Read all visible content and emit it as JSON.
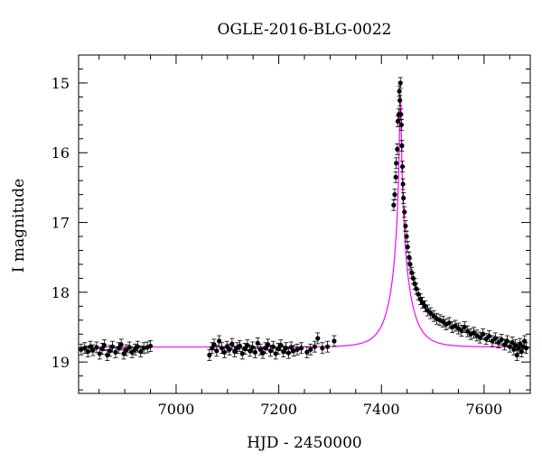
{
  "chart_data": {
    "type": "scatter",
    "title": "OGLE-2016-BLG-0022",
    "xlabel": "HJD - 2450000",
    "ylabel": "I magnitude",
    "xlim": [
      6810,
      7690
    ],
    "ylim": [
      19.45,
      14.6
    ],
    "y_inverted": true,
    "xticks": [
      7000,
      7200,
      7400,
      7600
    ],
    "yticks": [
      15,
      16,
      17,
      18,
      19
    ],
    "colors": {
      "data": "#000000",
      "model": "#ff00ff",
      "frame": "#000000"
    },
    "series": [
      {
        "type": "points_with_errorbars",
        "points": [
          [
            6815,
            18.82
          ],
          [
            6822,
            18.8
          ],
          [
            6828,
            18.85
          ],
          [
            6833,
            18.78
          ],
          [
            6838,
            18.83
          ],
          [
            6845,
            18.79
          ],
          [
            6851,
            18.88
          ],
          [
            6856,
            18.81
          ],
          [
            6860,
            18.76
          ],
          [
            6866,
            18.9
          ],
          [
            6871,
            18.84
          ],
          [
            6876,
            18.78
          ],
          [
            6882,
            18.86
          ],
          [
            6888,
            18.8
          ],
          [
            6893,
            18.75
          ],
          [
            6898,
            18.88
          ],
          [
            6903,
            18.83
          ],
          [
            6909,
            18.79
          ],
          [
            6914,
            18.86
          ],
          [
            6920,
            18.82
          ],
          [
            6925,
            18.78
          ],
          [
            6931,
            18.85
          ],
          [
            6937,
            18.8
          ],
          [
            6944,
            18.79
          ],
          [
            6950,
            18.77
          ],
          [
            7065,
            18.9
          ],
          [
            7070,
            18.8
          ],
          [
            7074,
            18.75
          ],
          [
            7079,
            18.84
          ],
          [
            7084,
            18.7
          ],
          [
            7089,
            18.8
          ],
          [
            7094,
            18.86
          ],
          [
            7099,
            18.78
          ],
          [
            7104,
            18.82
          ],
          [
            7109,
            18.74
          ],
          [
            7114,
            18.85
          ],
          [
            7119,
            18.8
          ],
          [
            7124,
            18.77
          ],
          [
            7129,
            18.88
          ],
          [
            7134,
            18.81
          ],
          [
            7139,
            18.76
          ],
          [
            7144,
            18.84
          ],
          [
            7149,
            18.79
          ],
          [
            7154,
            18.86
          ],
          [
            7159,
            18.73
          ],
          [
            7164,
            18.82
          ],
          [
            7169,
            18.87
          ],
          [
            7174,
            18.8
          ],
          [
            7179,
            18.75
          ],
          [
            7184,
            18.84
          ],
          [
            7189,
            18.78
          ],
          [
            7194,
            18.88
          ],
          [
            7199,
            18.81
          ],
          [
            7204,
            18.76
          ],
          [
            7209,
            18.85
          ],
          [
            7214,
            18.8
          ],
          [
            7219,
            18.87
          ],
          [
            7224,
            18.79
          ],
          [
            7229,
            18.84
          ],
          [
            7236,
            18.82
          ],
          [
            7244,
            18.8
          ],
          [
            7255,
            18.86
          ],
          [
            7262,
            18.82
          ],
          [
            7270,
            18.78
          ],
          [
            7276,
            18.66
          ],
          [
            7285,
            18.8
          ],
          [
            7295,
            18.78
          ],
          [
            7308,
            18.7
          ],
          [
            7424,
            16.75
          ],
          [
            7426,
            16.6
          ],
          [
            7428,
            16.35
          ],
          [
            7429,
            16.15
          ],
          [
            7431,
            15.95
          ],
          [
            7432,
            15.55
          ],
          [
            7434,
            15.45
          ],
          [
            7435,
            15.12
          ],
          [
            7436,
            15.25
          ],
          [
            7437,
            15.0
          ],
          [
            7438,
            15.45
          ],
          [
            7439,
            15.6
          ],
          [
            7440,
            15.9
          ],
          [
            7441,
            16.2
          ],
          [
            7442,
            16.45
          ],
          [
            7443,
            16.65
          ],
          [
            7445,
            16.85
          ],
          [
            7447,
            17.05
          ],
          [
            7449,
            17.2
          ],
          [
            7451,
            17.35
          ],
          [
            7454,
            17.5
          ],
          [
            7456,
            17.6
          ],
          [
            7459,
            17.72
          ],
          [
            7462,
            17.8
          ],
          [
            7465,
            17.88
          ],
          [
            7468,
            17.95
          ],
          [
            7472,
            18.03
          ],
          [
            7476,
            18.1
          ],
          [
            7480,
            18.15
          ],
          [
            7485,
            18.2
          ],
          [
            7490,
            18.26
          ],
          [
            7496,
            18.3
          ],
          [
            7502,
            18.34
          ],
          [
            7508,
            18.38
          ],
          [
            7514,
            18.4
          ],
          [
            7520,
            18.42
          ],
          [
            7526,
            18.46
          ],
          [
            7532,
            18.44
          ],
          [
            7538,
            18.5
          ],
          [
            7544,
            18.48
          ],
          [
            7550,
            18.52
          ],
          [
            7556,
            18.55
          ],
          [
            7562,
            18.5
          ],
          [
            7568,
            18.56
          ],
          [
            7574,
            18.6
          ],
          [
            7580,
            18.58
          ],
          [
            7586,
            18.62
          ],
          [
            7592,
            18.65
          ],
          [
            7598,
            18.6
          ],
          [
            7604,
            18.67
          ],
          [
            7610,
            18.63
          ],
          [
            7616,
            18.7
          ],
          [
            7622,
            18.66
          ],
          [
            7628,
            18.72
          ],
          [
            7634,
            18.68
          ],
          [
            7640,
            18.75
          ],
          [
            7645,
            18.7
          ],
          [
            7650,
            18.78
          ],
          [
            7655,
            18.72
          ],
          [
            7658,
            18.82
          ],
          [
            7661,
            18.76
          ],
          [
            7664,
            18.9
          ],
          [
            7667,
            18.8
          ],
          [
            7670,
            18.74
          ],
          [
            7673,
            18.85
          ],
          [
            7676,
            18.78
          ],
          [
            7679,
            18.7
          ],
          [
            7682,
            18.8
          ]
        ]
      },
      {
        "type": "model_curve",
        "model": {
          "t0": 7437,
          "u0": 0.036,
          "tE": 36,
          "baseline": 18.785,
          "blend_fraction": 1.0
        }
      }
    ]
  }
}
